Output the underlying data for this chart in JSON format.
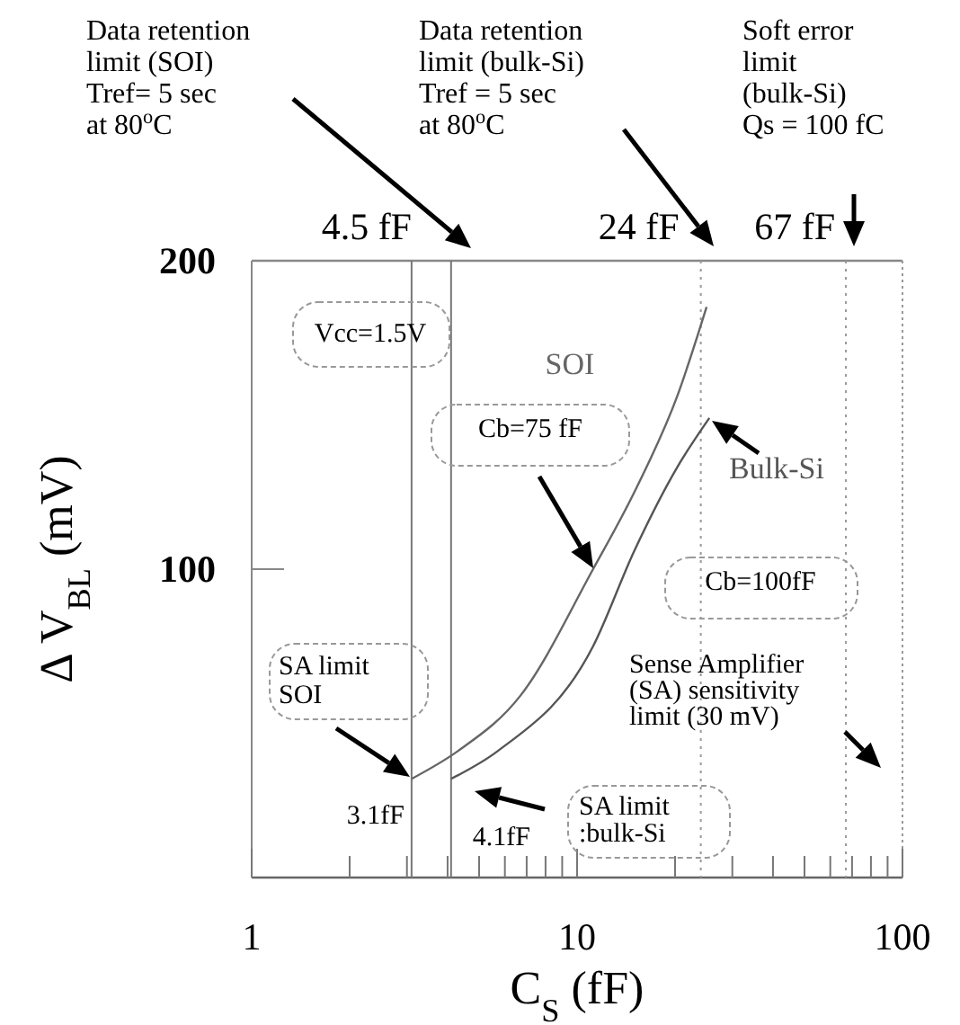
{
  "chart_data": {
    "type": "line",
    "xlabel": "C$_{S}$ (fF)",
    "ylabel": "Δ V$_{BL}$ (mV)",
    "log": "x",
    "xlim": [
      1,
      100
    ],
    "ylim": [
      0,
      200
    ],
    "xticks": [
      1,
      {
        "value": 2,
        "label": null
      },
      {
        "value": 3,
        "label": null
      },
      {
        "value": 4,
        "label": null
      },
      {
        "value": 5,
        "label": null
      },
      {
        "value": 6,
        "label": null
      },
      {
        "value": 7,
        "label": null
      },
      {
        "value": 8,
        "label": null
      },
      {
        "value": 9,
        "label": null
      },
      10,
      {
        "value": 20,
        "label": null
      },
      {
        "value": 30,
        "label": null
      },
      {
        "value": 40,
        "label": null
      },
      {
        "value": 50,
        "label": null
      },
      {
        "value": 60,
        "label": null
      },
      {
        "value": 70,
        "label": null
      },
      {
        "value": 80,
        "label": null
      },
      {
        "value": 90,
        "label": null
      },
      100
    ],
    "yticks": [
      100,
      200
    ],
    "line_style": "solid",
    "series": [
      {
        "name": "SOI",
        "color": "#666666",
        "x": [
          3.1,
          4.3,
          6.7,
          11.2,
          15,
          20.3,
          25
        ],
        "values": [
          32,
          41,
          59,
          100,
          125,
          156,
          185
        ]
      },
      {
        "name": "Bulk-Si",
        "color": "#555555",
        "x": [
          4.1,
          5.7,
          11.2,
          15,
          20.3,
          25.5
        ],
        "values": [
          32,
          41,
          75,
          106,
          133,
          149
        ]
      }
    ],
    "ref_lines": [
      {
        "axis": "x",
        "value": 3.1,
        "label": "3.1fF",
        "color": "#777777"
      },
      {
        "axis": "x",
        "value": 4.1,
        "label": "4.1fF",
        "color": "#777777"
      },
      {
        "axis": "x",
        "value": 24,
        "label": "24 fF",
        "color": "#999999",
        "line_style": "dotted"
      },
      {
        "axis": "x",
        "value": 67,
        "label": "67 fF",
        "color": "#999999",
        "line_style": "dotted"
      }
    ],
    "annotations": [
      "Data retention\nlimit (SOI)\nTref= 5 sec\nat 80$^{o}$C",
      "Data retention\nlimit (bulk-Si)\nTref = 5 sec\nat 80$^{o}$C",
      "Soft error\nlimit\n(bulk-Si)\nQs = 100 fC",
      "Vcc=1.5V",
      "Cb=75 fF",
      "Cb=100fF",
      "SA limit\nSOI",
      "SA limit\n:bulk-Si",
      "Sense Amplifier\n(SA) sensitivity\nlimit (30 mV)",
      "4.5 fF"
    ]
  }
}
